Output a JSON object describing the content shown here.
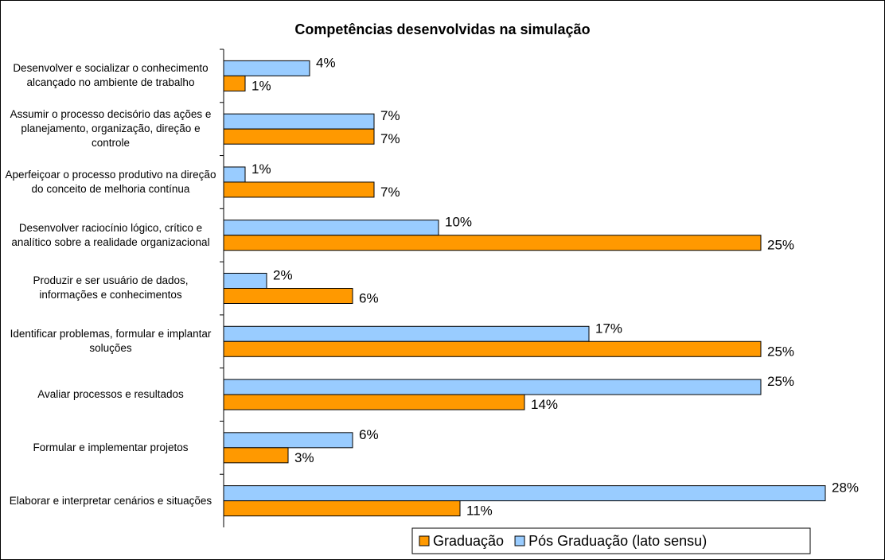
{
  "chart_data": {
    "type": "bar",
    "orientation": "horizontal",
    "title": "Competências desenvolvidas na simulação",
    "categories": [
      "Desenvolver e socializar o conhecimento alcançado no ambiente de trabalho",
      "Assumir o processo decisório das ações e planejamento, organização, direção e controle",
      "Aperfeiçoar o processo produtivo na direção do conceito de melhoria contínua",
      "Desenvolver raciocínio lógico, crítico e analítico sobre a realidade organizacional",
      "Produzir e ser usuário de dados, informações e conhecimentos",
      "Identificar problemas, formular e implantar soluções",
      "Avaliar processos e resultados",
      "Formular e implementar projetos",
      "Elaborar e interpretar cenários e situações"
    ],
    "series": [
      {
        "name": "Graduação",
        "color": "#ff9900",
        "values": [
          1,
          7,
          7,
          25,
          6,
          25,
          14,
          3,
          11
        ],
        "value_labels": [
          "1%",
          "7%",
          "7%",
          "25%",
          "6%",
          "25%",
          "14%",
          "3%",
          "11%"
        ]
      },
      {
        "name": "Pós Graduação (lato sensu)",
        "color": "#99ccff",
        "values": [
          4,
          7,
          1,
          10,
          2,
          17,
          25,
          6,
          28
        ],
        "value_labels": [
          "4%",
          "7%",
          "1%",
          "10%",
          "2%",
          "17%",
          "25%",
          "6%",
          "28%"
        ]
      }
    ],
    "xlim": [
      0,
      28
    ],
    "legend": "bottom-right"
  }
}
